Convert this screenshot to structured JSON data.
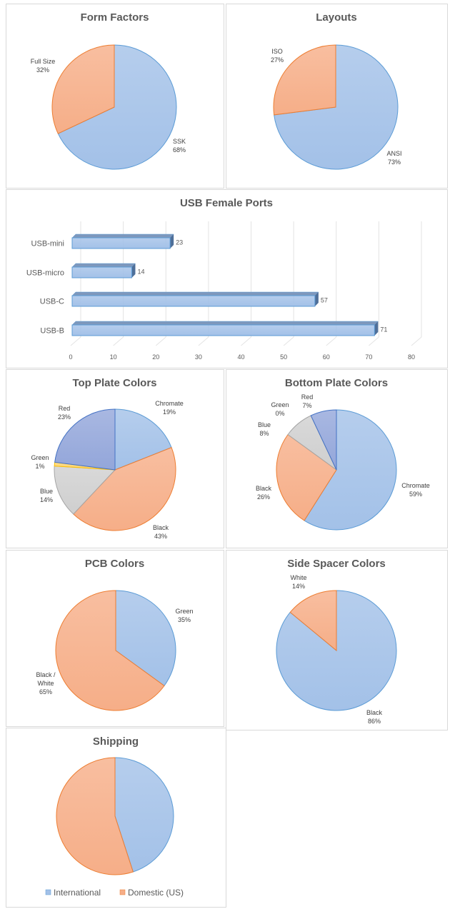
{
  "colors": {
    "blue": "#a3c1e8",
    "blue_stroke": "#5b9bd5",
    "orange": "#f6ae88",
    "orange_stroke": "#ed7d31",
    "gray": "#cfcfcf",
    "gray_stroke": "#a5a5a5",
    "yellow": "#ffd46e",
    "yellow_stroke": "#ffc000",
    "indigo": "#93a6da",
    "indigo_stroke": "#4472c4"
  },
  "chart_data": [
    {
      "id": "form-factors",
      "type": "pie",
      "title": "Form Factors",
      "categories": [
        "SSK",
        "Full Size"
      ],
      "values": [
        68,
        32
      ],
      "colors": [
        "blue",
        "orange"
      ],
      "data_labels": true
    },
    {
      "id": "layouts",
      "type": "pie",
      "title": "Layouts",
      "categories": [
        "ANSI",
        "ISO"
      ],
      "values": [
        73,
        27
      ],
      "colors": [
        "blue",
        "orange"
      ],
      "data_labels": true
    },
    {
      "id": "usb-female-ports",
      "type": "bar",
      "orientation": "horizontal",
      "style": "3d",
      "title": "USB Female Ports",
      "categories": [
        "USB-mini",
        "USB-micro",
        "USB-C",
        "USB-B"
      ],
      "values": [
        23,
        14,
        57,
        71
      ],
      "xlim": [
        0,
        80
      ],
      "xticks": [
        0,
        10,
        20,
        30,
        40,
        50,
        60,
        70,
        80
      ],
      "grid": true,
      "data_labels": true
    },
    {
      "id": "top-plate-colors",
      "type": "pie",
      "title": "Top Plate Colors",
      "categories": [
        "Chromate",
        "Black",
        "Blue",
        "Green",
        "Red"
      ],
      "values": [
        19,
        43,
        14,
        1,
        23
      ],
      "colors": [
        "blue",
        "orange",
        "gray",
        "yellow",
        "indigo"
      ],
      "data_labels": true
    },
    {
      "id": "bottom-plate-colors",
      "type": "pie",
      "title": "Bottom Plate Colors",
      "categories": [
        "Chromate",
        "Black",
        "Blue",
        "Green",
        "Red"
      ],
      "values": [
        59,
        26,
        8,
        0,
        7
      ],
      "colors": [
        "blue",
        "orange",
        "gray",
        "yellow",
        "indigo"
      ],
      "data_labels": true
    },
    {
      "id": "pcb-colors",
      "type": "pie",
      "title": "PCB Colors",
      "categories": [
        "Green",
        "Black / White"
      ],
      "values": [
        35,
        65
      ],
      "colors": [
        "blue",
        "orange"
      ],
      "data_labels": true
    },
    {
      "id": "side-spacer-colors",
      "type": "pie",
      "title": "Side Spacer Colors",
      "categories": [
        "Black",
        "White"
      ],
      "values": [
        86,
        14
      ],
      "colors": [
        "blue",
        "orange"
      ],
      "data_labels": true
    },
    {
      "id": "shipping",
      "type": "pie",
      "title": "Shipping",
      "categories": [
        "International",
        "Domestic (US)"
      ],
      "values": [
        45,
        55
      ],
      "colors": [
        "blue",
        "orange"
      ],
      "data_labels": false,
      "legend": "bottom"
    }
  ]
}
